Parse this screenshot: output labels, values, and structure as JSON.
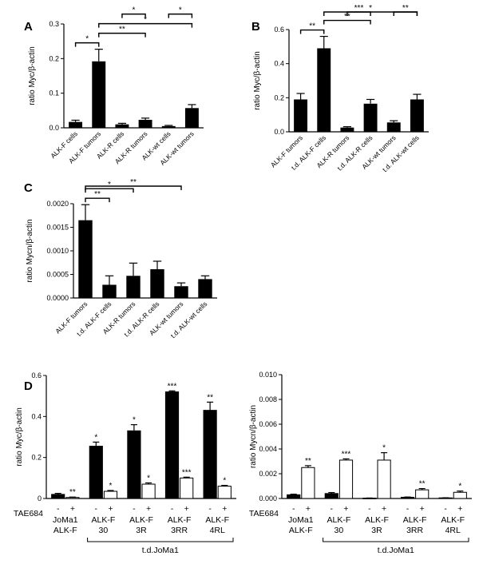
{
  "chart_data": [
    {
      "panel": "A",
      "type": "bar",
      "ylabel": "ratio Myc/β-actin",
      "ylim": [
        0,
        0.3
      ],
      "yticks": [
        "0.0",
        "0.1",
        "0.2",
        "0.3"
      ],
      "categories": [
        "ALK-F cells",
        "ALK-F tumors",
        "ALK-R cells",
        "ALK-R tumors",
        "ALK-wt cells",
        "ALK-wt tumors"
      ],
      "values": [
        0.017,
        0.192,
        0.01,
        0.023,
        0.005,
        0.057
      ],
      "errors": [
        0.005,
        0.035,
        0.003,
        0.005,
        0.002,
        0.01
      ],
      "significance": [
        {
          "from": 0,
          "to": 1,
          "label": "*"
        },
        {
          "from": 1,
          "to": 3,
          "label": "**"
        },
        {
          "from": 1,
          "to": 5,
          "label": "*"
        },
        {
          "from": 2,
          "to": 3,
          "label": "*"
        },
        {
          "from": 4,
          "to": 5,
          "label": "*"
        }
      ]
    },
    {
      "panel": "B",
      "type": "bar",
      "ylabel": "ratio Myc/β-actin",
      "ylim": [
        0,
        0.6
      ],
      "yticks": [
        "0.0",
        "0.2",
        "0.4",
        "0.6"
      ],
      "categories": [
        "ALK-F tumors",
        "t.d. ALK-F cells",
        "ALK-R tumors",
        "t.d. ALK-R cells",
        "ALK-wt tumors",
        "t.d. ALK-wt cells"
      ],
      "values": [
        0.19,
        0.49,
        0.025,
        0.165,
        0.055,
        0.19
      ],
      "errors": [
        0.035,
        0.07,
        0.005,
        0.025,
        0.01,
        0.03
      ],
      "significance": [
        {
          "from": 0,
          "to": 1,
          "label": "**"
        },
        {
          "from": 1,
          "to": 3,
          "label": "**"
        },
        {
          "from": 1,
          "to": 5,
          "label": "*"
        },
        {
          "from": 2,
          "to": 3,
          "label": "***"
        },
        {
          "from": 4,
          "to": 5,
          "label": "**"
        }
      ]
    },
    {
      "panel": "C",
      "type": "bar",
      "ylabel": "ratio Mycn/β-actin",
      "ylim": [
        0,
        0.002
      ],
      "yticks": [
        "0.0000",
        "0.0005",
        "0.0010",
        "0.0015",
        "0.0020"
      ],
      "categories": [
        "ALK-F tumors",
        "t.d. ALK-F cells",
        "ALK-R tumors",
        "t.d. ALK-R cells",
        "ALK-wt tumors",
        "t.d. ALK-wt cells"
      ],
      "values": [
        0.00165,
        0.00028,
        0.00047,
        0.00061,
        0.00025,
        0.0004
      ],
      "errors": [
        0.00033,
        0.00019,
        0.00027,
        0.00017,
        7e-05,
        7e-05
      ],
      "significance": [
        {
          "from": 0,
          "to": 1,
          "label": "**"
        },
        {
          "from": 0,
          "to": 2,
          "label": "*"
        },
        {
          "from": 0,
          "to": 4,
          "label": "**"
        }
      ]
    },
    {
      "panel": "D",
      "type": "bar",
      "ylabel": "ratio Myc/β-actin",
      "ylim": [
        0,
        0.6
      ],
      "yticks": [
        "0",
        "0.2",
        "0.4",
        "0.6"
      ],
      "groups": [
        "JoMa1\nALK-F",
        "ALK-F\n30",
        "ALK-F\n3R",
        "ALK-F\n3RR",
        "ALK-F\n4RL"
      ],
      "treatment_label": "TAE684",
      "treatment_signs": [
        "-",
        "+"
      ],
      "bracket_label": "t.d.JoMa1",
      "series": [
        {
          "name": "-",
          "values": [
            0.02,
            0.255,
            0.33,
            0.52,
            0.43
          ],
          "errors": [
            0.005,
            0.02,
            0.03,
            0.005,
            0.04
          ],
          "stars": [
            "",
            "*",
            "*",
            "***",
            "**"
          ]
        },
        {
          "name": "+",
          "values": [
            0.005,
            0.035,
            0.07,
            0.1,
            0.06
          ],
          "errors": [
            0.002,
            0.004,
            0.006,
            0.004,
            0.004
          ],
          "stars": [
            "**",
            "*",
            "*",
            "***",
            "*"
          ]
        }
      ]
    },
    {
      "panel": "D-right",
      "type": "bar",
      "ylabel": "ratio Mycn/β-actin",
      "ylim": [
        0,
        0.01
      ],
      "yticks": [
        "0.000",
        "0.002",
        "0.004",
        "0.006",
        "0.008",
        "0.010"
      ],
      "groups": [
        "JoMa1\nALK-F",
        "ALK-F\n30",
        "ALK-F\n3R",
        "ALK-F\n3RR",
        "ALK-F\n4RL"
      ],
      "treatment_label": "TAE684",
      "treatment_signs": [
        "-",
        "+"
      ],
      "bracket_label": "t.d.JoMa1",
      "series": [
        {
          "name": "-",
          "values": [
            0.0003,
            0.0004,
            3e-05,
            0.0001,
            5e-05
          ],
          "errors": [
            5e-05,
            8e-05,
            1e-05,
            2e-05,
            1e-05
          ],
          "stars": [
            "",
            "",
            "",
            "",
            ""
          ]
        },
        {
          "name": "+",
          "values": [
            0.0025,
            0.0031,
            0.0031,
            0.0007,
            0.0005
          ],
          "errors": [
            0.00015,
            0.0001,
            0.0006,
            0.0001,
            0.0001
          ],
          "stars": [
            "**",
            "***",
            "*",
            "**",
            "*"
          ]
        }
      ]
    }
  ]
}
